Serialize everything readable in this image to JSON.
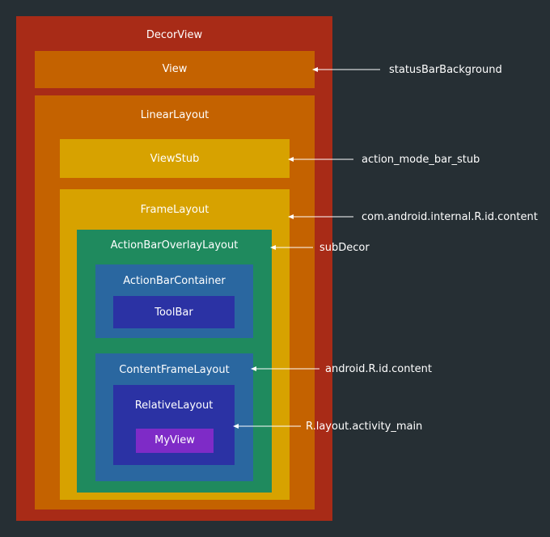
{
  "colors": {
    "background": "#262f34",
    "decor_view": "#a82b17",
    "status_view": "#c46200",
    "linear_layout": "#c46200",
    "view_stub": "#d7a200",
    "frame_layout": "#d7a200",
    "overlay_layout": "#1f8a5e",
    "container": "#2a67a0",
    "toolbar": "#2b32a4",
    "relative_layout": "#2b32a4",
    "my_view": "#7e2bc7",
    "arrow": "#ffffff"
  },
  "boxes": {
    "decor_view": "DecorView",
    "status_view": "View",
    "linear_layout": "LinearLayout",
    "view_stub": "ViewStub",
    "frame_layout": "FrameLayout",
    "overlay_layout": "ActionBarOverlayLayout",
    "action_bar_container": "ActionBarContainer",
    "toolbar": "ToolBar",
    "content_frame_layout": "ContentFrameLayout",
    "relative_layout": "RelativeLayout",
    "my_view": "MyView"
  },
  "annotations": {
    "status_bar_background": "statusBarBackground",
    "action_mode_bar_stub": "action_mode_bar_stub",
    "internal_content": "com.android.internal.R.id.content",
    "sub_decor": "subDecor",
    "android_content": "android.R.id.content",
    "activity_main": "R.layout.activity_main"
  }
}
